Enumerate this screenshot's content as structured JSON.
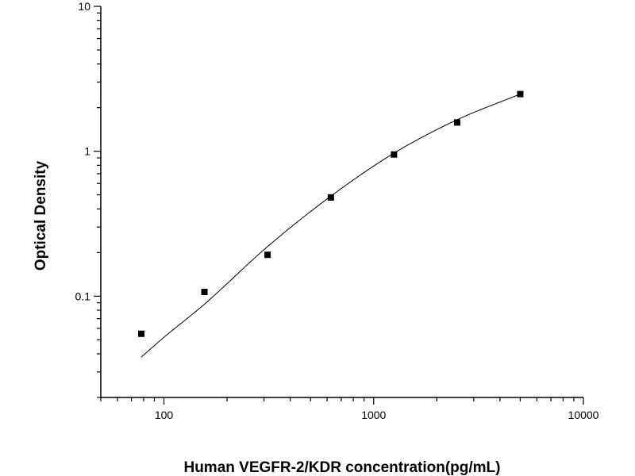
{
  "chart_data": {
    "type": "scatter",
    "title": "",
    "xlabel": "Human VEGFR-2/KDR concentration(pg/mL)",
    "ylabel": "Optical Density",
    "x_scale": "log",
    "y_scale": "log",
    "xlim": [
      50,
      10000
    ],
    "ylim": [
      0.02,
      10
    ],
    "x_ticks": [
      {
        "value": 100,
        "label": "100"
      },
      {
        "value": 1000,
        "label": "1000"
      },
      {
        "value": 10000,
        "label": "10000"
      }
    ],
    "y_ticks": [
      {
        "value": 0.1,
        "label": "0.1"
      },
      {
        "value": 1,
        "label": "1"
      },
      {
        "value": 10,
        "label": "10"
      }
    ],
    "grid": false,
    "series": [
      {
        "type": "scatter",
        "marker": "square",
        "color": "#000000",
        "x": [
          78,
          156,
          312,
          625,
          1250,
          2500,
          5000
        ],
        "y": [
          0.055,
          0.107,
          0.193,
          0.48,
          0.95,
          1.58,
          2.48
        ]
      },
      {
        "type": "line",
        "color": "#000000",
        "x": [
          78,
          100,
          156,
          312,
          625,
          1250,
          2500,
          5000
        ],
        "y": [
          0.038,
          0.052,
          0.088,
          0.22,
          0.49,
          0.97,
          1.65,
          2.48
        ]
      }
    ]
  }
}
